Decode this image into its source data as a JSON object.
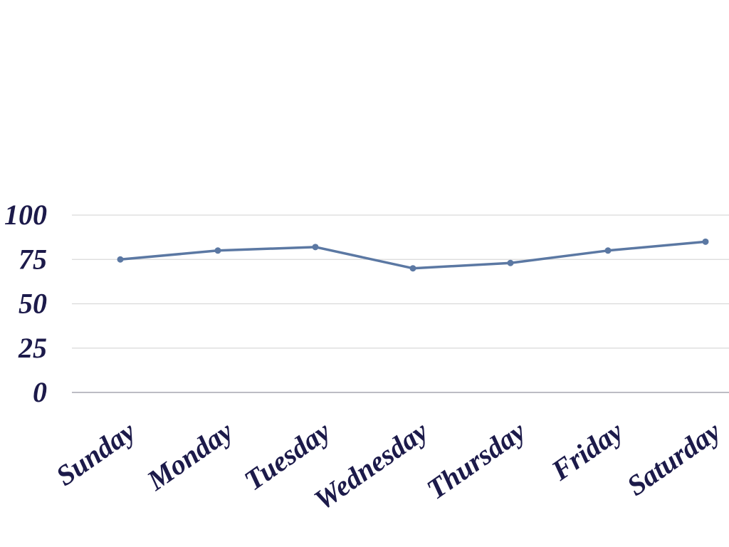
{
  "chart_data": {
    "type": "line",
    "categories": [
      "Sunday",
      "Monday",
      "Tuesday",
      "Wednesday",
      "Thursday",
      "Friday",
      "Saturday"
    ],
    "series": [
      {
        "values": [
          75,
          80,
          82,
          70,
          73,
          80,
          85
        ],
        "color": "#5b78a3"
      }
    ],
    "yticks": [
      "0",
      "25",
      "50",
      "75",
      "100"
    ],
    "ylim": [
      0,
      100
    ],
    "grid": true,
    "title": "",
    "xlabel": "",
    "ylabel": ""
  }
}
